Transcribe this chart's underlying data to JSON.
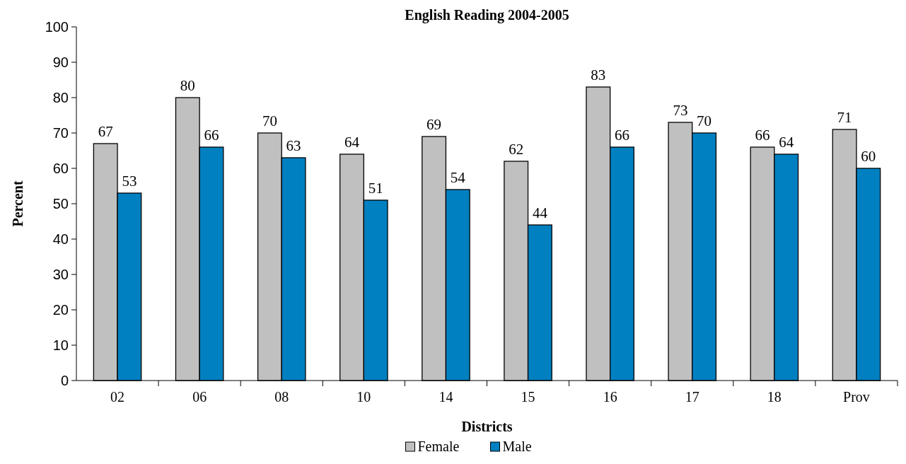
{
  "chart_data": {
    "type": "bar",
    "title": "English Reading 2004-2005",
    "xlabel": "Districts",
    "ylabel": "Percent",
    "categories": [
      "02",
      "06",
      "08",
      "10",
      "14",
      "15",
      "16",
      "17",
      "18",
      "Prov"
    ],
    "series": [
      {
        "name": "Female",
        "color": "#c0c0c0",
        "values": [
          67,
          80,
          70,
          64,
          69,
          62,
          83,
          73,
          66,
          71
        ]
      },
      {
        "name": "Male",
        "color": "#0080c0",
        "values": [
          53,
          66,
          63,
          51,
          54,
          44,
          66,
          70,
          64,
          60
        ]
      }
    ],
    "ylim": [
      0,
      100
    ],
    "yticks": [
      0,
      10,
      20,
      30,
      40,
      50,
      60,
      70,
      80,
      90,
      100
    ],
    "data_labels": true,
    "legend": "bottom",
    "grid": false
  }
}
